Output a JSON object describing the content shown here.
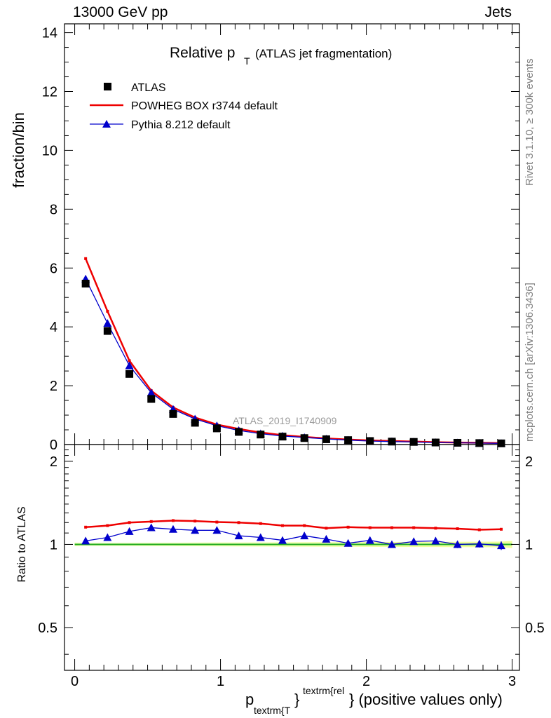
{
  "header": {
    "left": "13000 GeV pp",
    "right": "Jets"
  },
  "side_labels": {
    "rivet": "Rivet 3.1.10, ≥ 300k events",
    "mcplots": "mcplots.cern.ch [arXiv:1306.3436]"
  },
  "watermark": "ATLAS_2019_I1740909",
  "chart_data": [
    {
      "panel": "main",
      "type": "line",
      "title": {
        "main": "Relative p",
        "sub": "T",
        "paren": "(ATLAS jet fragmentation)"
      },
      "ylabel": "fraction/bin",
      "xlim": [
        -0.07,
        3.05
      ],
      "ylim": [
        0,
        14.3
      ],
      "yticks": [
        0,
        2,
        4,
        6,
        8,
        10,
        12,
        14
      ],
      "x": [
        0.075,
        0.225,
        0.375,
        0.525,
        0.675,
        0.825,
        0.975,
        1.125,
        1.275,
        1.425,
        1.575,
        1.725,
        1.875,
        2.025,
        2.175,
        2.325,
        2.475,
        2.625,
        2.775,
        2.925
      ],
      "legend": [
        "ATLAS",
        "POWHEG BOX r3744 default",
        "Pythia 8.212 default"
      ],
      "series": [
        {
          "name": "ATLAS",
          "style": "markers-square",
          "color": "#000000",
          "values": [
            5.47,
            3.86,
            2.4,
            1.55,
            1.04,
            0.74,
            0.55,
            0.43,
            0.34,
            0.27,
            0.22,
            0.18,
            0.15,
            0.12,
            0.1,
            0.09,
            0.07,
            0.06,
            0.05,
            0.04
          ]
        },
        {
          "name": "POWHEG BOX r3744 default",
          "style": "line",
          "color": "#ee0000",
          "values": [
            6.32,
            4.53,
            2.85,
            1.83,
            1.26,
            0.92,
            0.68,
            0.53,
            0.41,
            0.32,
            0.26,
            0.21,
            0.17,
            0.14,
            0.12,
            0.1,
            0.08,
            0.07,
            0.06,
            0.05
          ]
        },
        {
          "name": "Pythia 8.212 default",
          "style": "line-triangle",
          "color": "#0000cc",
          "values": [
            5.63,
            4.12,
            2.68,
            1.76,
            1.2,
            0.87,
            0.64,
            0.48,
            0.37,
            0.29,
            0.24,
            0.19,
            0.15,
            0.12,
            0.1,
            0.09,
            0.07,
            0.06,
            0.05,
            0.04
          ]
        }
      ]
    },
    {
      "panel": "ratio",
      "type": "line",
      "ylabel": "Ratio to ATLAS",
      "xlabel": {
        "main": "p",
        "sub": "textrm{T",
        "sup": "textrm{rel",
        "rest": "} (positive values only)"
      },
      "xlim": [
        -0.07,
        3.05
      ],
      "ylim": [
        0.35,
        2.3
      ],
      "yscale": "log",
      "yticks": [
        0.5,
        1,
        2
      ],
      "yticklabels": [
        "0.5",
        "1",
        "2"
      ],
      "xticks": [
        0,
        1,
        2,
        3
      ],
      "xticklabels": [
        "0",
        "1",
        "2",
        "3"
      ],
      "x": [
        0.075,
        0.225,
        0.375,
        0.525,
        0.675,
        0.825,
        0.975,
        1.125,
        1.275,
        1.425,
        1.575,
        1.725,
        1.875,
        2.025,
        2.175,
        2.325,
        2.475,
        2.625,
        2.775,
        2.925
      ],
      "series": [
        {
          "name": "POWHEG BOX r3744 default",
          "color": "#ee0000",
          "values": [
            1.155,
            1.17,
            1.2,
            1.21,
            1.22,
            1.215,
            1.205,
            1.2,
            1.19,
            1.17,
            1.17,
            1.145,
            1.155,
            1.15,
            1.15,
            1.15,
            1.145,
            1.14,
            1.13,
            1.135
          ]
        },
        {
          "name": "Pythia 8.212 default",
          "color": "#0000cc",
          "values": [
            1.03,
            1.06,
            1.115,
            1.15,
            1.135,
            1.125,
            1.125,
            1.075,
            1.06,
            1.035,
            1.075,
            1.045,
            1.01,
            1.035,
            1.0,
            1.025,
            1.03,
            1.0,
            1.005,
            0.99
          ],
          "errors": [
            0,
            0,
            0,
            0,
            0,
            0,
            0,
            0,
            0,
            0,
            0,
            0,
            0.015,
            0.015,
            0.02,
            0.02,
            0.03,
            0.03,
            0.03,
            0.035
          ]
        }
      ]
    }
  ]
}
